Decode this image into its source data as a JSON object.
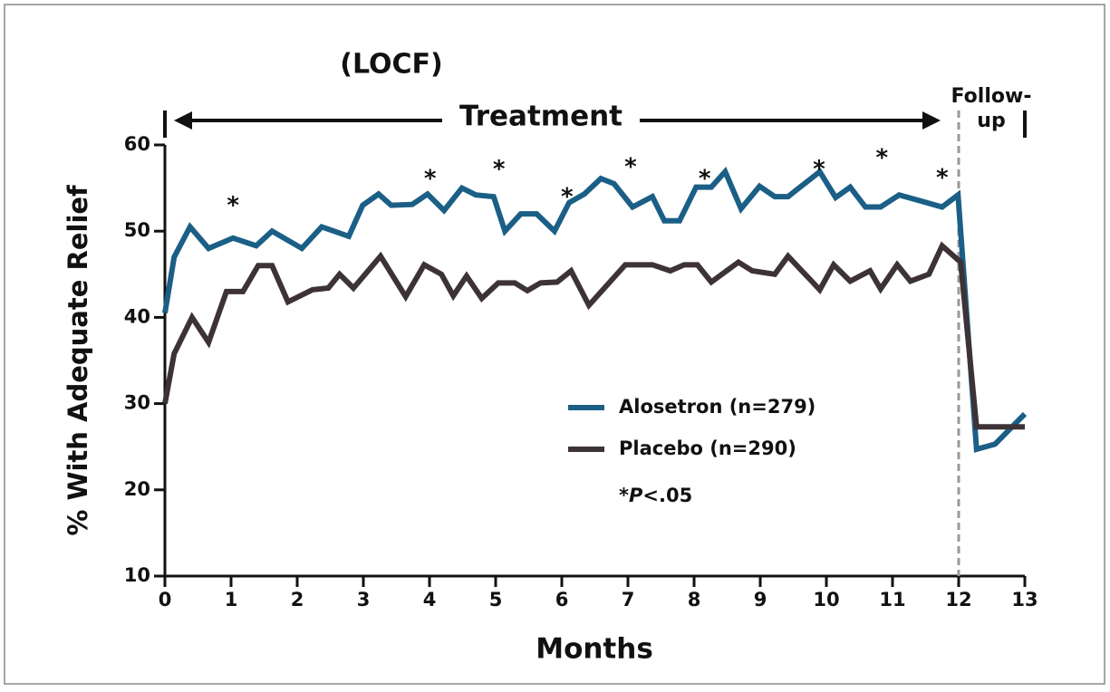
{
  "chart_data": {
    "type": "line",
    "title": "(LOCF)",
    "phase_labels": {
      "treatment": "Treatment",
      "follow_up": [
        "Follow-",
        "up"
      ]
    },
    "phase_divider_x": 12,
    "xlabel": "Months",
    "ylabel": "% With Adequate Relief",
    "xlim": [
      0,
      13
    ],
    "xticks": [
      0,
      1,
      2,
      3,
      4,
      5,
      6,
      7,
      8,
      9,
      10,
      11,
      12,
      13
    ],
    "ylim": [
      10,
      60
    ],
    "yticks": [
      10,
      20,
      30,
      40,
      50,
      60
    ],
    "series": [
      {
        "name": "Alosetron (n=279)",
        "color": "#1b5f86",
        "x": [
          0,
          0.14,
          0.38,
          0.66,
          1.03,
          1.38,
          1.62,
          2.07,
          2.37,
          2.78,
          2.99,
          3.23,
          3.42,
          3.74,
          3.97,
          4.22,
          4.49,
          4.7,
          4.97,
          5.14,
          5.38,
          5.62,
          5.89,
          6.11,
          6.34,
          6.59,
          6.79,
          7.07,
          7.37,
          7.55,
          7.78,
          8.03,
          8.26,
          8.47,
          8.71,
          8.99,
          9.22,
          9.42,
          9.9,
          10.14,
          10.36,
          10.59,
          10.82,
          11.1,
          11.75,
          11.99,
          12.27,
          12.55,
          13
        ],
        "values": [
          40.5,
          47,
          50.5,
          48,
          49.2,
          48.3,
          50,
          48,
          50.5,
          49.4,
          53,
          54.3,
          53,
          53.1,
          54.3,
          52.4,
          55,
          54.2,
          54,
          50,
          52,
          52,
          50,
          53.3,
          54.3,
          56.1,
          55.5,
          52.8,
          54,
          51.2,
          51.2,
          55.1,
          55.1,
          56.9,
          52.6,
          55.2,
          54,
          54,
          56.9,
          53.9,
          55.1,
          52.8,
          52.8,
          54.2,
          52.8,
          54.2,
          24.7,
          25.3,
          28.8
        ]
      },
      {
        "name": "Placebo (n=290)",
        "color": "#3d3336",
        "x": [
          0,
          0.14,
          0.41,
          0.66,
          0.93,
          1.18,
          1.41,
          1.62,
          1.86,
          2.23,
          2.47,
          2.64,
          2.85,
          3.26,
          3.64,
          3.92,
          4.18,
          4.36,
          4.56,
          4.79,
          5.04,
          5.29,
          5.48,
          5.68,
          5.93,
          6.14,
          6.41,
          6.96,
          7.37,
          7.64,
          7.85,
          8.05,
          8.26,
          8.67,
          8.88,
          9.22,
          9.42,
          9.9,
          10.11,
          10.36,
          10.66,
          10.82,
          11.07,
          11.27,
          11.55,
          11.75,
          12.03,
          12.27,
          13
        ],
        "values": [
          30,
          35.8,
          40,
          37.1,
          43,
          43,
          46,
          46,
          41.8,
          43.2,
          43.4,
          45,
          43.4,
          47.1,
          42.4,
          46.1,
          45,
          42.5,
          44.8,
          42.2,
          44,
          44,
          43.1,
          44,
          44.1,
          45.4,
          41.4,
          46.1,
          46.1,
          45.4,
          46.1,
          46.1,
          44.1,
          46.4,
          45.4,
          45,
          47.1,
          43.2,
          46.1,
          44.2,
          45.4,
          43.3,
          46.1,
          44.2,
          45,
          48.3,
          46.4,
          27.3,
          27.3
        ]
      }
    ],
    "annotations": [
      {
        "text": "*",
        "x": 1.03,
        "y": 52.9
      },
      {
        "text": "*",
        "x": 4.01,
        "y": 56
      },
      {
        "text": "*",
        "x": 5.05,
        "y": 57.1
      },
      {
        "text": "*",
        "x": 6.08,
        "y": 53.9
      },
      {
        "text": "*",
        "x": 7.04,
        "y": 57.4
      },
      {
        "text": "*",
        "x": 8.16,
        "y": 56
      },
      {
        "text": "*",
        "x": 9.89,
        "y": 57.1
      },
      {
        "text": "*",
        "x": 10.84,
        "y": 58.4
      },
      {
        "text": "*",
        "x": 11.75,
        "y": 56.1
      }
    ],
    "footnote": [
      "*",
      "P",
      "<.05"
    ]
  }
}
